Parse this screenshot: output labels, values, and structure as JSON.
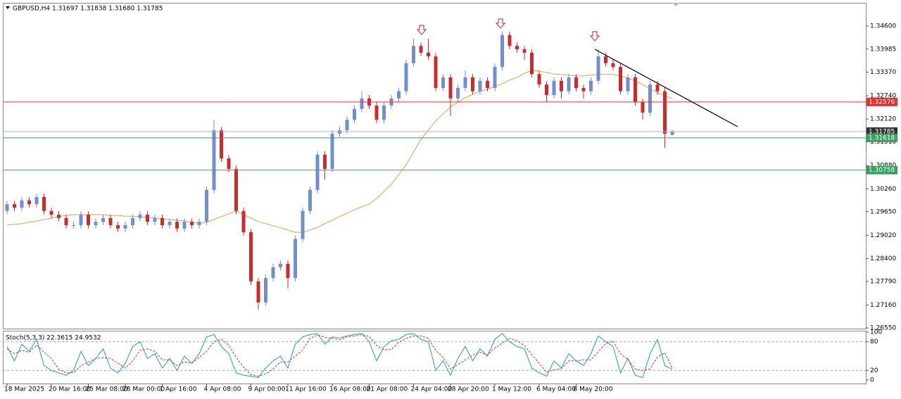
{
  "chart_data": {
    "type": "candlestick",
    "title": "GBPUSD,H4  1.31697 1.31838 1.31680 1.31785",
    "up_color": "#6f8fd0",
    "down_color": "#cc2b2b",
    "categories": [
      "18 Mar 2025",
      null,
      null,
      null,
      null,
      null,
      "20 Mar 16:00",
      null,
      null,
      null,
      null,
      "25 Mar 08:00",
      null,
      null,
      null,
      null,
      "28 Mar 00:00",
      null,
      null,
      null,
      null,
      "1 Apr 16:00",
      null,
      null,
      null,
      null,
      null,
      "4 Apr 08:00",
      null,
      null,
      null,
      null,
      null,
      "9 Apr 00:00",
      null,
      null,
      null,
      null,
      "11 Apr 16:00",
      null,
      null,
      null,
      null,
      null,
      "16 Apr 08:00",
      null,
      null,
      null,
      null,
      "21 Apr 08:00",
      null,
      null,
      null,
      null,
      null,
      "24 Apr 04:00",
      null,
      null,
      null,
      null,
      "28 Apr 20:00",
      null,
      null,
      null,
      null,
      null,
      "1 May 12:00",
      null,
      null,
      null,
      null,
      null,
      "6 May 04:00",
      null,
      null,
      null,
      null,
      "8 May 20:00",
      null,
      null,
      null,
      null,
      null,
      null,
      null,
      null,
      null,
      null,
      null,
      null,
      null
    ],
    "open": [
      1.2967,
      1.2985,
      1.2976,
      1.2995,
      1.2985,
      1.3004,
      1.2967,
      1.2957,
      1.2948,
      1.2929,
      1.2929,
      1.2957,
      1.2929,
      1.2938,
      1.2948,
      1.2929,
      1.292,
      1.2929,
      1.2948,
      1.2957,
      1.2938,
      1.2948,
      1.2929,
      1.2938,
      1.292,
      1.2938,
      1.2929,
      1.2938,
      1.3023,
      1.3182,
      1.3107,
      1.3079,
      1.2967,
      1.291,
      1.2779,
      1.2723,
      1.2788,
      1.2817,
      1.2826,
      1.2788,
      1.2892,
      1.2967,
      1.3023,
      1.3117,
      1.3079,
      1.3173,
      1.3182,
      1.321,
      1.3239,
      1.3267,
      1.3248,
      1.321,
      1.3248,
      1.3267,
      1.3286,
      1.3361,
      1.3407,
      1.3389,
      1.3379,
      1.3295,
      1.3323,
      1.3267,
      1.3295,
      1.3323,
      1.3286,
      1.3314,
      1.3295,
      1.3351,
      1.3436,
      1.3407,
      1.3398,
      1.3389,
      1.3332,
      1.3304,
      1.3276,
      1.3314,
      1.3286,
      1.3323,
      1.3295,
      1.3286,
      1.3314,
      1.3379,
      1.3361,
      1.3351,
      1.3286,
      1.3323,
      1.3257,
      1.3229,
      1.3304,
      1.3286,
      1.31697
    ],
    "high": [
      1.2994,
      1.2994,
      1.3004,
      1.3004,
      1.3013,
      1.3013,
      1.2976,
      1.2966,
      1.2957,
      1.2938,
      1.2966,
      1.2966,
      1.2947,
      1.2957,
      1.2957,
      1.2938,
      1.2938,
      1.2957,
      1.2966,
      1.2966,
      1.2957,
      1.2957,
      1.2947,
      1.2947,
      1.2947,
      1.2947,
      1.2947,
      1.3032,
      1.321,
      1.3191,
      1.3116,
      1.3088,
      1.2976,
      1.2919,
      1.2788,
      1.2797,
      1.2826,
      1.2835,
      1.2835,
      1.2901,
      1.2976,
      1.3032,
      1.3126,
      1.3126,
      1.3182,
      1.3191,
      1.3219,
      1.3248,
      1.3286,
      1.3276,
      1.3257,
      1.3257,
      1.3276,
      1.3295,
      1.337,
      1.3426,
      1.3416,
      1.3426,
      1.3388,
      1.3332,
      1.3332,
      1.3304,
      1.3342,
      1.3332,
      1.3323,
      1.3323,
      1.336,
      1.3445,
      1.3445,
      1.3416,
      1.3407,
      1.3398,
      1.3341,
      1.3313,
      1.3323,
      1.3323,
      1.3332,
      1.3332,
      1.3304,
      1.3323,
      1.3398,
      1.3388,
      1.337,
      1.336,
      1.3332,
      1.3332,
      1.3266,
      1.3313,
      1.3313,
      1.3295,
      1.31838
    ],
    "low": [
      1.2958,
      1.2967,
      1.2967,
      1.2976,
      1.2976,
      1.2958,
      1.2948,
      1.2939,
      1.292,
      1.292,
      1.292,
      1.292,
      1.292,
      1.2929,
      1.292,
      1.2911,
      1.2911,
      1.292,
      1.2939,
      1.2929,
      1.2929,
      1.292,
      1.292,
      1.2911,
      1.2911,
      1.292,
      1.292,
      1.2929,
      1.3014,
      1.3098,
      1.307,
      1.2958,
      1.2901,
      1.277,
      1.2704,
      1.2714,
      1.2779,
      1.2808,
      1.276,
      1.2779,
      1.2883,
      1.2958,
      1.3014,
      1.3051,
      1.307,
      1.3164,
      1.3173,
      1.3201,
      1.323,
      1.3239,
      1.3201,
      1.3201,
      1.3239,
      1.3258,
      1.3277,
      1.3352,
      1.338,
      1.337,
      1.3286,
      1.3286,
      1.322,
      1.3258,
      1.3286,
      1.3277,
      1.3277,
      1.3286,
      1.3286,
      1.3342,
      1.3398,
      1.3389,
      1.337,
      1.3323,
      1.3295,
      1.3258,
      1.3267,
      1.3267,
      1.3277,
      1.3286,
      1.3267,
      1.3277,
      1.3305,
      1.3352,
      1.3342,
      1.3277,
      1.3277,
      1.3248,
      1.321,
      1.322,
      1.3277,
      1.3135,
      1.3168
    ],
    "close": [
      1.2985,
      1.2976,
      1.2995,
      1.2985,
      1.3004,
      1.2967,
      1.2957,
      1.2948,
      1.2929,
      1.2929,
      1.2957,
      1.2929,
      1.2938,
      1.2948,
      1.2929,
      1.292,
      1.2929,
      1.2948,
      1.2957,
      1.2938,
      1.2948,
      1.2929,
      1.2938,
      1.292,
      1.2938,
      1.2929,
      1.2938,
      1.3023,
      1.3182,
      1.3107,
      1.3079,
      1.2967,
      1.291,
      1.2779,
      1.2723,
      1.2788,
      1.2817,
      1.2826,
      1.2788,
      1.2892,
      1.2967,
      1.3023,
      1.3117,
      1.3079,
      1.3173,
      1.3182,
      1.321,
      1.3239,
      1.3267,
      1.3248,
      1.321,
      1.3248,
      1.3267,
      1.3286,
      1.3361,
      1.3407,
      1.3389,
      1.3379,
      1.3295,
      1.3323,
      1.3267,
      1.3295,
      1.3323,
      1.3286,
      1.3314,
      1.3295,
      1.3351,
      1.3436,
      1.3407,
      1.3398,
      1.3389,
      1.3332,
      1.3304,
      1.3276,
      1.3314,
      1.3286,
      1.3323,
      1.3295,
      1.3286,
      1.3314,
      1.3379,
      1.3361,
      1.3351,
      1.3286,
      1.3323,
      1.3257,
      1.3229,
      1.3304,
      1.3286,
      1.3173,
      1.31785
    ],
    "ma": {
      "color": "#e0a050",
      "values": [
        1.2929,
        1.2931,
        1.2933,
        1.2937,
        1.294,
        1.2944,
        1.2948,
        1.2952,
        1.2955,
        1.2957,
        1.2957,
        1.2957,
        1.2957,
        1.2957,
        1.2955,
        1.2955,
        1.2953,
        1.2953,
        1.2952,
        1.295,
        1.2948,
        1.2946,
        1.2944,
        1.2942,
        1.294,
        1.2937,
        1.2933,
        1.2937,
        1.2944,
        1.2952,
        1.2959,
        1.2967,
        1.2957,
        1.2948,
        1.2938,
        1.2933,
        1.2927,
        1.2922,
        1.2916,
        1.291,
        1.291,
        1.2916,
        1.2923,
        1.2933,
        1.2942,
        1.2952,
        1.2961,
        1.297,
        1.2978,
        1.2985,
        1.3,
        1.3019,
        1.3038,
        1.3064,
        1.309,
        1.3124,
        1.3158,
        1.3182,
        1.3207,
        1.3226,
        1.3244,
        1.3257,
        1.3269,
        1.3278,
        1.3286,
        1.3291,
        1.3299,
        1.3306,
        1.3316,
        1.3323,
        1.3334,
        1.3342,
        1.334,
        1.3336,
        1.3332,
        1.3331,
        1.3329,
        1.3327,
        1.3327,
        1.3329,
        1.3331,
        1.3332,
        1.3331,
        1.3327,
        1.3321,
        1.3314,
        1.3304,
        1.3293,
        1.3282,
        1.3274,
        1.3267
      ]
    },
    "ylim": [
      1.2655,
      1.352
    ],
    "yticks": [
      {
        "value": 1.346,
        "label": "1.34600"
      },
      1.33985,
      {
        "value": 1.3337,
        "label": "1.33370"
      },
      {
        "value": 1.3274,
        "label": "1.32740"
      },
      {
        "value": 1.3212,
        "label": "1.32120"
      },
      {
        "value": 1.3151,
        "label": "1.31510"
      },
      {
        "value": 1.3088,
        "label": "1.30880"
      },
      {
        "value": 1.3026,
        "label": "1.30260"
      },
      {
        "value": 1.2965,
        "label": "1.29650"
      },
      {
        "value": 1.2902,
        "label": "1.29020"
      },
      {
        "value": 1.284,
        "label": "1.28400"
      },
      {
        "value": 1.2779,
        "label": "1.27790"
      },
      {
        "value": 1.2716,
        "label": "1.27160"
      },
      {
        "value": 1.2655,
        "label": "1.26550"
      }
    ],
    "levels": [
      {
        "value": 1.32576,
        "color": "#e03030",
        "label_color": "#e03030"
      },
      {
        "value": 1.31785,
        "color": "#b0b0b0",
        "label_color": "#303030"
      },
      {
        "value": 1.31618,
        "color": "#3aa060",
        "label_color": "#3aa060"
      },
      {
        "value": 1.30758,
        "color": "#3aa060",
        "label_color": "#3aa060"
      }
    ],
    "stoch": {
      "label": "Stoch(5,3,3) 22.3615 24.9532",
      "ylim": [
        0,
        100
      ],
      "yticks": [
        100,
        80,
        20,
        0
      ],
      "series": [
        {
          "color": "#1fa0a8",
          "style": "solid",
          "values": [
            70,
            40,
            75,
            60,
            85,
            30,
            20,
            15,
            10,
            20,
            60,
            30,
            45,
            65,
            25,
            15,
            35,
            70,
            80,
            45,
            55,
            25,
            45,
            20,
            50,
            35,
            55,
            90,
            95,
            70,
            55,
            15,
            10,
            8,
            5,
            25,
            40,
            50,
            25,
            75,
            90,
            95,
            97,
            75,
            90,
            88,
            92,
            95,
            97,
            80,
            40,
            70,
            82,
            85,
            95,
            97,
            85,
            80,
            20,
            40,
            10,
            45,
            70,
            40,
            65,
            50,
            85,
            97,
            80,
            70,
            65,
            25,
            15,
            8,
            40,
            25,
            55,
            40,
            30,
            55,
            92,
            80,
            70,
            15,
            45,
            10,
            5,
            55,
            85,
            30,
            22.3615
          ]
        },
        {
          "color": "#d03030",
          "style": "dashed",
          "values": [
            65,
            55,
            62,
            58,
            73,
            58,
            45,
            22,
            15,
            15,
            30,
            37,
            45,
            47,
            45,
            35,
            25,
            40,
            62,
            65,
            60,
            42,
            42,
            30,
            38,
            35,
            47,
            60,
            80,
            85,
            73,
            47,
            27,
            11,
            8,
            13,
            23,
            38,
            38,
            50,
            63,
            87,
            94,
            89,
            87,
            84,
            90,
            92,
            95,
            91,
            72,
            63,
            64,
            79,
            87,
            92,
            92,
            87,
            62,
            47,
            23,
            32,
            42,
            52,
            58,
            52,
            67,
            77,
            87,
            82,
            72,
            53,
            35,
            16,
            21,
            24,
            40,
            40,
            42,
            42,
            59,
            76,
            81,
            55,
            43,
            23,
            20,
            23,
            48,
            57,
            24.9532
          ]
        }
      ]
    }
  }
}
